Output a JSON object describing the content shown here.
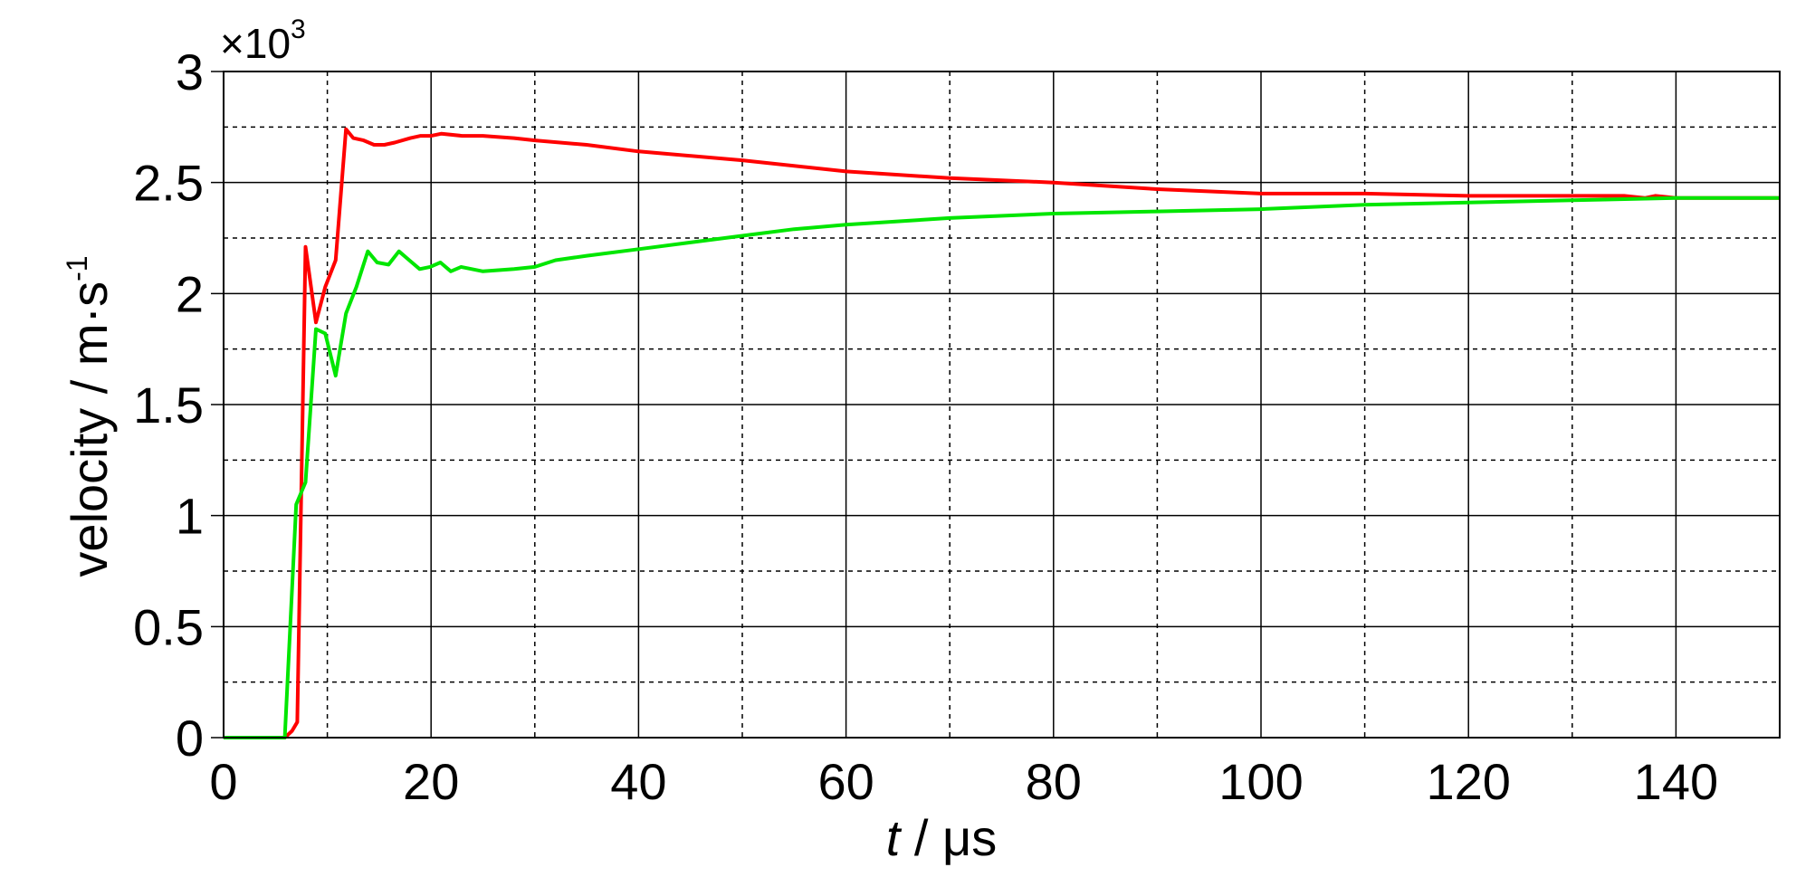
{
  "chart_data": {
    "type": "line",
    "xlabel_var": "t",
    "xlabel_unit": " / μs",
    "ylabel_text": "velocity / m·s",
    "ylabel_sup": "-1",
    "y_multiplier_base": "×10",
    "y_multiplier_exp": "3",
    "xlim": [
      0,
      150
    ],
    "ylim": [
      0,
      3
    ],
    "x_ticks": [
      0,
      20,
      40,
      60,
      80,
      100,
      120,
      140
    ],
    "x_tick_labels": [
      "0",
      "20",
      "40",
      "60",
      "80",
      "100",
      "120",
      "140"
    ],
    "y_ticks": [
      0,
      0.5,
      1,
      1.5,
      2,
      2.5,
      3
    ],
    "y_tick_labels": [
      "0",
      "0.5",
      "1",
      "1.5",
      "2",
      "2.5",
      "3"
    ],
    "grid": "major solid, minor dashed",
    "series": [
      {
        "color": "#ff0000",
        "x": [
          0,
          5.9,
          6.6,
          7.1,
          7.9,
          8.9,
          9.8,
          10.8,
          11.8,
          12.5,
          13.5,
          14.5,
          15.5,
          16.5,
          18,
          19,
          20,
          21,
          23,
          25,
          28,
          30,
          35,
          40,
          50,
          60,
          70,
          80,
          90,
          100,
          110,
          120,
          130,
          135,
          137,
          138,
          140,
          145,
          150
        ],
        "y": [
          0,
          0,
          0.03,
          0.07,
          2.21,
          1.87,
          2.03,
          2.15,
          2.74,
          2.7,
          2.69,
          2.67,
          2.67,
          2.68,
          2.7,
          2.71,
          2.71,
          2.72,
          2.71,
          2.71,
          2.7,
          2.69,
          2.67,
          2.64,
          2.6,
          2.55,
          2.52,
          2.5,
          2.47,
          2.45,
          2.45,
          2.44,
          2.44,
          2.44,
          2.43,
          2.44,
          2.43,
          2.43,
          2.43
        ]
      },
      {
        "color": "#00e600",
        "x": [
          0,
          5.9,
          7.0,
          7.9,
          8.9,
          9.8,
          10.8,
          11.8,
          12.8,
          13.9,
          14.8,
          15.9,
          16.9,
          17.9,
          18.9,
          19.9,
          20.9,
          21.9,
          22.9,
          25,
          28,
          30,
          32,
          35,
          40,
          45,
          50,
          55,
          60,
          70,
          80,
          90,
          100,
          110,
          120,
          130,
          140,
          150
        ],
        "y": [
          0,
          0,
          1.05,
          1.15,
          1.84,
          1.82,
          1.63,
          1.91,
          2.03,
          2.19,
          2.14,
          2.13,
          2.19,
          2.15,
          2.11,
          2.12,
          2.14,
          2.1,
          2.12,
          2.1,
          2.11,
          2.12,
          2.15,
          2.17,
          2.2,
          2.23,
          2.26,
          2.29,
          2.31,
          2.34,
          2.36,
          2.37,
          2.38,
          2.4,
          2.41,
          2.42,
          2.43,
          2.43
        ]
      }
    ]
  }
}
